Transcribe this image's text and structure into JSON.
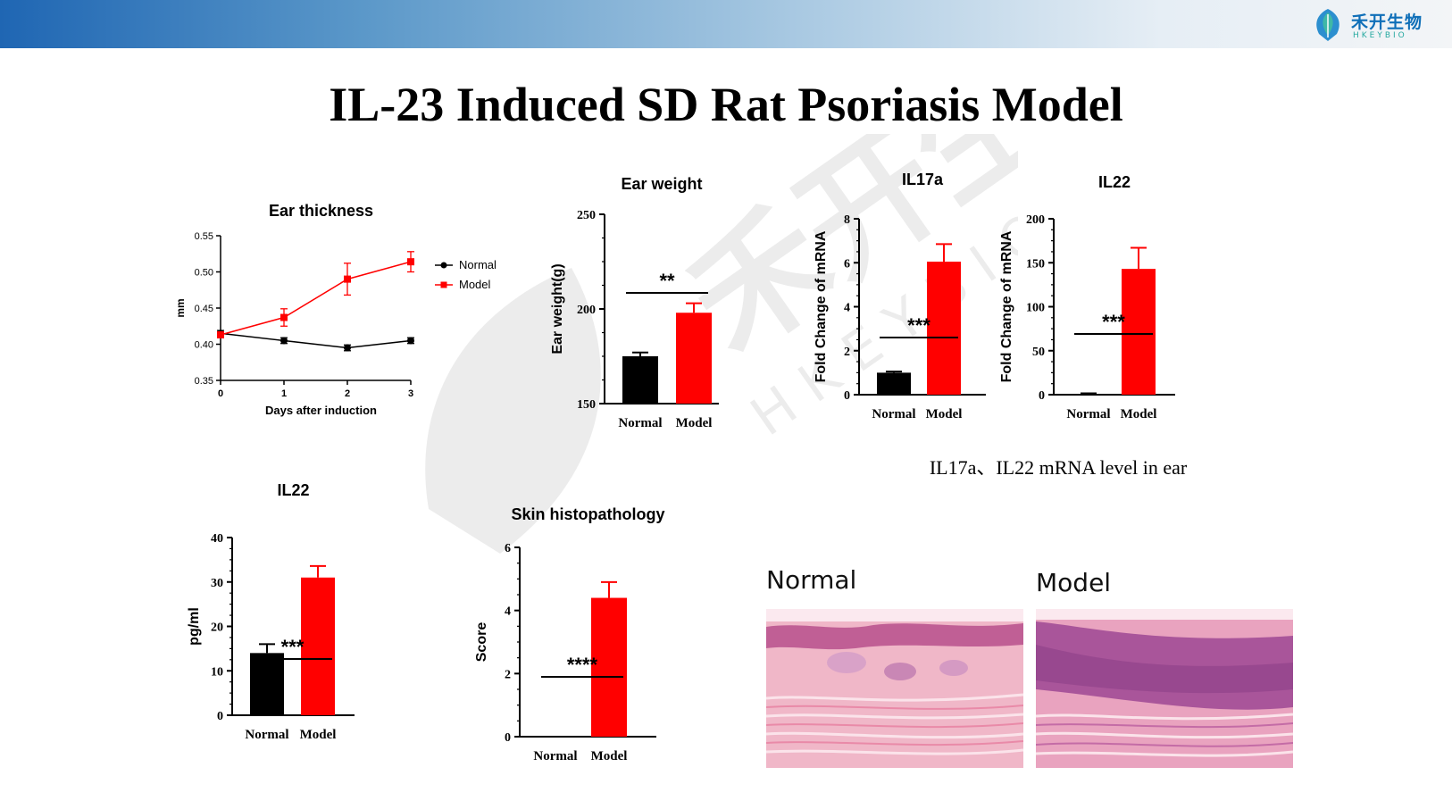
{
  "header": {
    "logo_text": "禾开生物",
    "logo_sub": "HKEYBIO",
    "brand_color": "#1f66b3",
    "accent": "#26a9a0"
  },
  "page_title": "IL-23 Induced SD Rat Psoriasis Model",
  "watermark": {
    "main": "禾开生物",
    "sub": "HKEYBIO"
  },
  "caption": "IL17a、IL22 mRNA level in ear",
  "histology": {
    "labels": [
      "Normal",
      "Model"
    ]
  },
  "colors": {
    "normal": "#000000",
    "model": "#ff0000"
  },
  "chart_data": [
    {
      "id": "ear-thickness",
      "type": "line",
      "title": "Ear thickness",
      "xlabel": "Days after induction",
      "ylabel": "mm",
      "x": [
        0,
        1,
        2,
        3
      ],
      "xticks": [
        "0",
        "1",
        "2",
        "3"
      ],
      "ylim": [
        0.35,
        0.55
      ],
      "yticks": [
        "0.35",
        "0.40",
        "0.45",
        "0.50",
        "0.55"
      ],
      "series": [
        {
          "name": "Normal",
          "values": [
            0.415,
            0.405,
            0.395,
            0.405
          ],
          "err": [
            0.004,
            0.004,
            0.004,
            0.004
          ]
        },
        {
          "name": "Model",
          "values": [
            0.413,
            0.437,
            0.49,
            0.514
          ],
          "err": [
            0.004,
            0.012,
            0.022,
            0.014
          ]
        }
      ],
      "legend": "right"
    },
    {
      "id": "ear-weight",
      "type": "bar",
      "title": "Ear weight",
      "ylabel": "Ear weight(g)",
      "categories": [
        "Normal",
        "Model"
      ],
      "values": [
        175,
        198
      ],
      "err": [
        2,
        5
      ],
      "ylim": [
        150,
        250
      ],
      "yticks": [
        "150",
        "200",
        "250"
      ],
      "significance": "**"
    },
    {
      "id": "il17a-mrna",
      "type": "bar",
      "title": "IL17a",
      "ylabel": "Fold Change of mRNA",
      "categories": [
        "Normal",
        "Model"
      ],
      "values": [
        1.0,
        6.05
      ],
      "err": [
        0.05,
        0.8
      ],
      "ylim": [
        0,
        8
      ],
      "yticks": [
        "0",
        "2",
        "4",
        "6",
        "8"
      ],
      "significance": "***"
    },
    {
      "id": "il22-mrna",
      "type": "bar",
      "title": "IL22",
      "ylabel": "Fold Change of mRNA",
      "categories": [
        "Normal",
        "Model"
      ],
      "values": [
        1,
        143
      ],
      "err": [
        0.5,
        24
      ],
      "ylim": [
        0,
        200
      ],
      "yticks": [
        "0",
        "50",
        "100",
        "150",
        "200"
      ],
      "significance": "***"
    },
    {
      "id": "il22-serum",
      "type": "bar",
      "title": "IL22",
      "ylabel": "pg/ml",
      "categories": [
        "Normal",
        "Model"
      ],
      "values": [
        14,
        31
      ],
      "err": [
        2,
        2.6
      ],
      "ylim": [
        0,
        40
      ],
      "yticks": [
        "0",
        "10",
        "20",
        "30",
        "40"
      ],
      "significance": "***"
    },
    {
      "id": "skin-histopathology",
      "type": "bar",
      "title": "Skin histopathology",
      "ylabel": "Score",
      "categories": [
        "Normal",
        "Model"
      ],
      "values": [
        0,
        4.4
      ],
      "err": [
        0,
        0.5
      ],
      "ylim": [
        0,
        6
      ],
      "yticks": [
        "0",
        "2",
        "4",
        "6"
      ],
      "significance": "****"
    }
  ]
}
